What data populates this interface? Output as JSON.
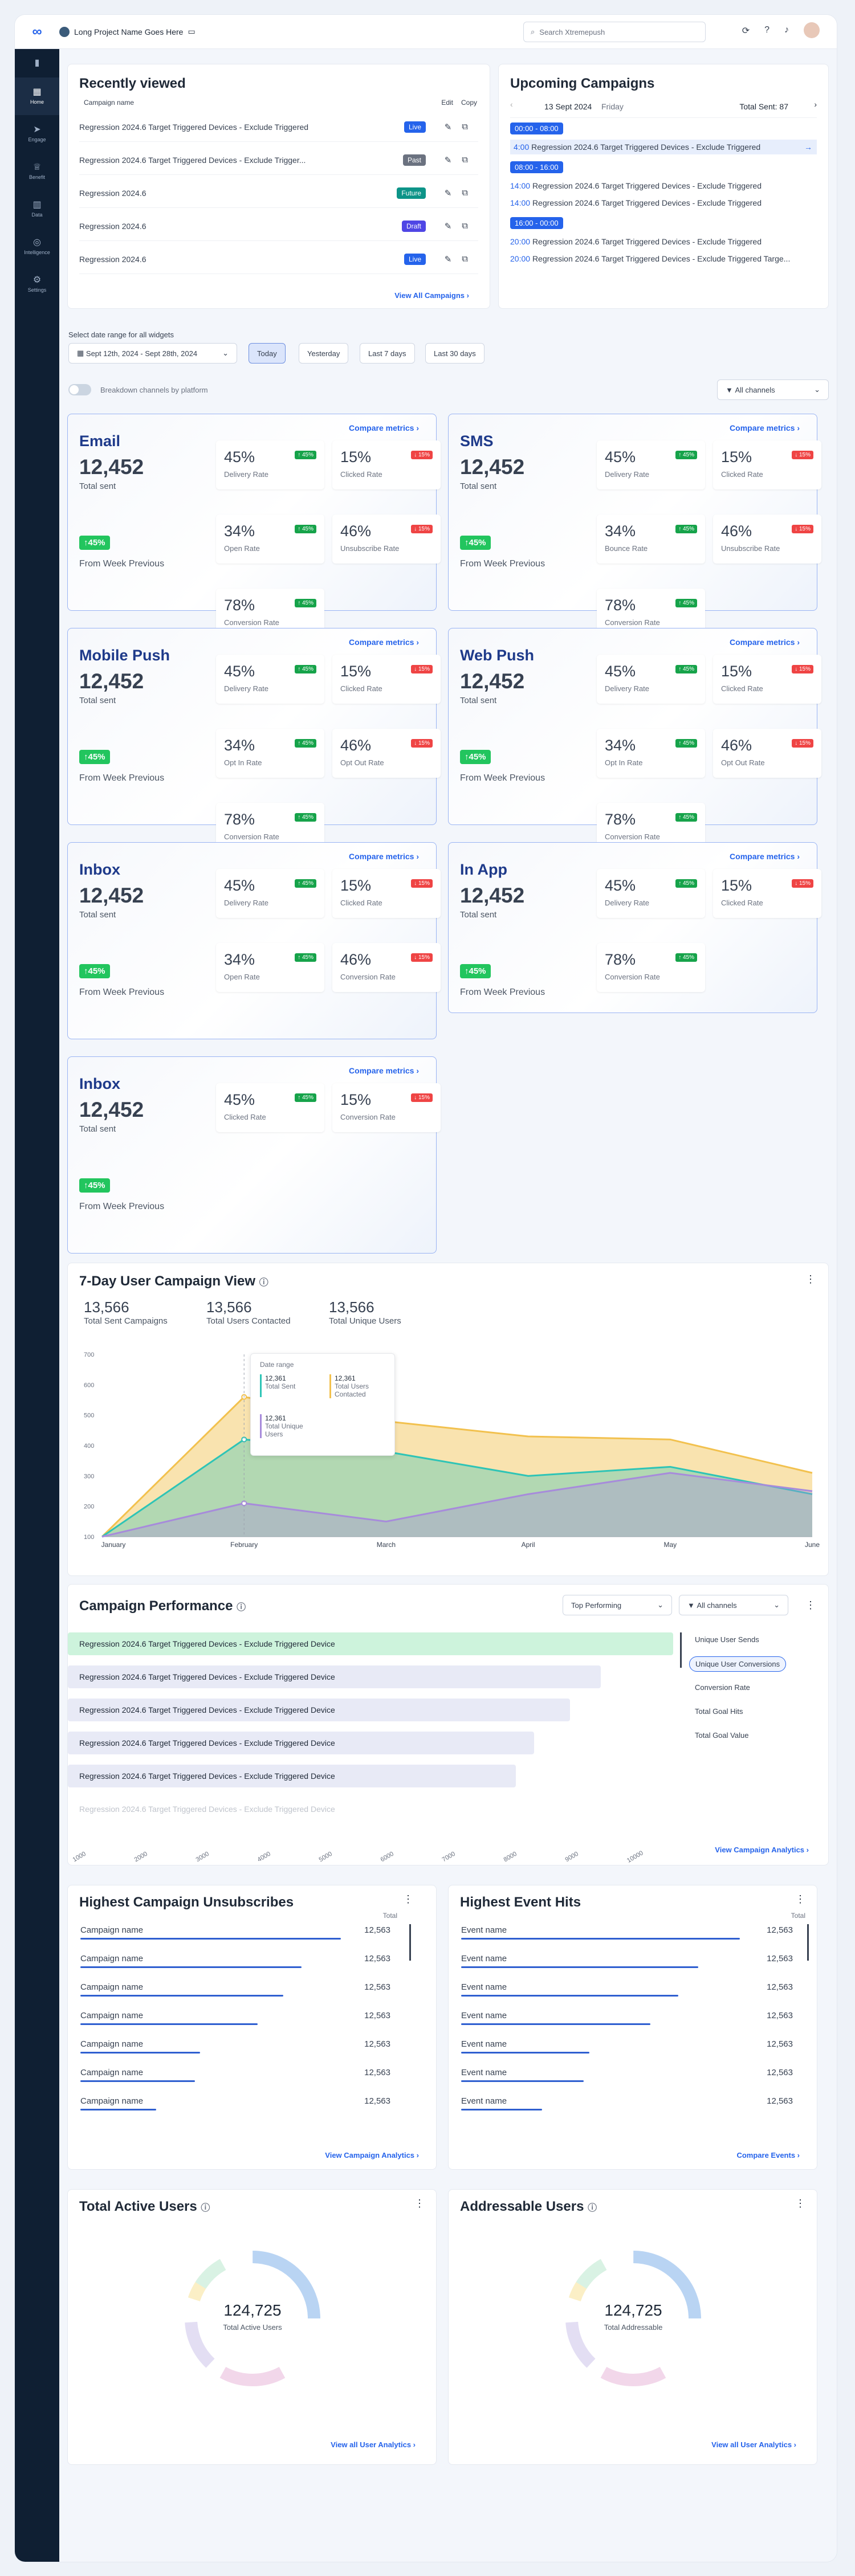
{
  "header": {
    "project": "Long Project Name Goes Here",
    "search_placeholder": "Search Xtremepush"
  },
  "sidebar": [
    {
      "label": "Home",
      "icon": "home-icon",
      "glyph": "▦"
    },
    {
      "label": "Engage",
      "icon": "send-icon",
      "glyph": "➤"
    },
    {
      "label": "Benefit",
      "icon": "trophy-icon",
      "glyph": "♕"
    },
    {
      "label": "Data",
      "icon": "chart-icon",
      "glyph": "▥"
    },
    {
      "label": "Intelligence",
      "icon": "brain-icon",
      "glyph": "◎"
    },
    {
      "label": "Settings",
      "icon": "gear-icon",
      "glyph": "⚙"
    }
  ],
  "recent": {
    "title": "Recently viewed",
    "col_name": "Campaign name",
    "col_edit": "Edit",
    "col_copy": "Copy",
    "view_all": "View All Campaigns",
    "rows": [
      {
        "name": "Regression 2024.6 Target Triggered Devices - Exclude Triggered",
        "status": "Live",
        "color": "#2563eb"
      },
      {
        "name": "Regression 2024.6 Target Triggered Devices - Exclude Trigger...",
        "status": "Past",
        "color": "#6b7280"
      },
      {
        "name": "Regression 2024.6",
        "status": "Future",
        "color": "#0d9488"
      },
      {
        "name": "Regression 2024.6",
        "status": "Draft",
        "color": "#4f46e5"
      },
      {
        "name": "Regression 2024.6",
        "status": "Live",
        "color": "#2563eb"
      }
    ]
  },
  "upcoming": {
    "title": "Upcoming Campaigns",
    "date": "13 Sept 2024",
    "day": "Friday",
    "total": "Total Sent: 87",
    "groups": [
      {
        "time": "00:00 - 08:00",
        "items": [
          {
            "t": "4:00",
            "n": "Regression 2024.6 Target Triggered Devices - Exclude Triggered"
          }
        ]
      },
      {
        "time": "08:00 - 16:00",
        "items": [
          {
            "t": "14:00",
            "n": "Regression 2024.6 Target Triggered Devices - Exclude Triggered"
          },
          {
            "t": "14:00",
            "n": "Regression 2024.6 Target Triggered Devices - Exclude Triggered"
          }
        ]
      },
      {
        "time": "16:00 - 00:00",
        "items": [
          {
            "t": "20:00",
            "n": "Regression 2024.6 Target Triggered Devices - Exclude Triggered"
          },
          {
            "t": "20:00",
            "n": "Regression 2024.6 Target Triggered Devices - Exclude Triggered Targe..."
          }
        ]
      }
    ]
  },
  "filters": {
    "label": "Select date range for all widgets",
    "range": "Sept 12th, 2024 - Sept 28th, 2024",
    "today": "Today",
    "yesterday": "Yesterday",
    "last7": "Last 7 days",
    "last30": "Last 30 days",
    "breakdown": "Breakdown channels by platform",
    "channels": "All channels"
  },
  "channels": [
    {
      "name": "Email",
      "value": "12,452",
      "sub": "Total sent",
      "change": "↑45%",
      "from": "From Week Previous",
      "compare": "Compare metrics",
      "tiles": [
        {
          "v": "45%",
          "l": "Delivery Rate",
          "d": "↑ 45%",
          "up": true
        },
        {
          "v": "15%",
          "l": "Clicked Rate",
          "d": "↓ 15%",
          "up": false
        },
        {
          "v": "34%",
          "l": "Open Rate",
          "d": "↑ 45%",
          "up": true
        },
        {
          "v": "46%",
          "l": "Unsubscribe Rate",
          "d": "↓ 15%",
          "up": false
        },
        {
          "v": "78%",
          "l": "Conversion Rate",
          "d": "↑ 45%",
          "up": true
        }
      ]
    },
    {
      "name": "SMS",
      "value": "12,452",
      "sub": "Total sent",
      "change": "↑45%",
      "from": "From Week Previous",
      "compare": "Compare metrics",
      "tiles": [
        {
          "v": "45%",
          "l": "Delivery Rate",
          "d": "↑ 45%",
          "up": true
        },
        {
          "v": "15%",
          "l": "Clicked Rate",
          "d": "↓ 15%",
          "up": false
        },
        {
          "v": "34%",
          "l": "Bounce Rate",
          "d": "↑ 45%",
          "up": true
        },
        {
          "v": "46%",
          "l": "Unsubscribe Rate",
          "d": "↓ 15%",
          "up": false
        },
        {
          "v": "78%",
          "l": "Conversion Rate",
          "d": "↑ 45%",
          "up": true
        }
      ]
    },
    {
      "name": "Mobile Push",
      "value": "12,452",
      "sub": "Total sent",
      "change": "↑45%",
      "from": "From Week Previous",
      "compare": "Compare metrics",
      "tiles": [
        {
          "v": "45%",
          "l": "Delivery Rate",
          "d": "↑ 45%",
          "up": true
        },
        {
          "v": "15%",
          "l": "Clicked Rate",
          "d": "↓ 15%",
          "up": false
        },
        {
          "v": "34%",
          "l": "Opt In Rate",
          "d": "↑ 45%",
          "up": true
        },
        {
          "v": "46%",
          "l": "Opt Out Rate",
          "d": "↓ 15%",
          "up": false
        },
        {
          "v": "78%",
          "l": "Conversion Rate",
          "d": "↑ 45%",
          "up": true
        }
      ]
    },
    {
      "name": "Web Push",
      "value": "12,452",
      "sub": "Total sent",
      "change": "↑45%",
      "from": "From Week Previous",
      "compare": "Compare metrics",
      "tiles": [
        {
          "v": "45%",
          "l": "Delivery Rate",
          "d": "↑ 45%",
          "up": true
        },
        {
          "v": "15%",
          "l": "Clicked Rate",
          "d": "↓ 15%",
          "up": false
        },
        {
          "v": "34%",
          "l": "Opt In Rate",
          "d": "↑ 45%",
          "up": true
        },
        {
          "v": "46%",
          "l": "Opt Out Rate",
          "d": "↓ 15%",
          "up": false
        },
        {
          "v": "78%",
          "l": "Conversion Rate",
          "d": "↑ 45%",
          "up": true
        }
      ]
    },
    {
      "name": "Inbox",
      "value": "12,452",
      "sub": "Total sent",
      "change": "↑45%",
      "from": "From Week Previous",
      "compare": "Compare metrics",
      "tiles": [
        {
          "v": "45%",
          "l": "Delivery Rate",
          "d": "↑ 45%",
          "up": true
        },
        {
          "v": "15%",
          "l": "Clicked Rate",
          "d": "↓ 15%",
          "up": false
        },
        {
          "v": "34%",
          "l": "Open Rate",
          "d": "↑ 45%",
          "up": true
        },
        {
          "v": "46%",
          "l": "Conversion Rate",
          "d": "↓ 15%",
          "up": false
        }
      ]
    },
    {
      "name": "In App",
      "value": "12,452",
      "sub": "Total sent",
      "change": "↑45%",
      "from": "From Week Previous",
      "compare": "Compare metrics",
      "tiles": [
        {
          "v": "45%",
          "l": "Delivery Rate",
          "d": "↑ 45%",
          "up": true
        },
        {
          "v": "15%",
          "l": "Clicked Rate",
          "d": "↓ 15%",
          "up": false
        },
        {
          "v": "78%",
          "l": "Conversion Rate",
          "d": "↑ 45%",
          "up": true
        }
      ]
    },
    {
      "name": "Inbox",
      "value": "12,452",
      "sub": "Total sent",
      "change": "↑45%",
      "from": "From Week Previous",
      "compare": "Compare metrics",
      "tiles": [
        {
          "v": "45%",
          "l": "Clicked Rate",
          "d": "↑ 45%",
          "up": true
        },
        {
          "v": "15%",
          "l": "Conversion Rate",
          "d": "↓ 15%",
          "up": false
        }
      ]
    }
  ],
  "sevenday": {
    "title": "7-Day User Campaign View",
    "stats": [
      {
        "v": "13,566",
        "l": "Total Sent Campaigns",
        "c": "#2ec4b6"
      },
      {
        "v": "13,566",
        "l": "Total Users Contacted",
        "c": "#f2c14e"
      },
      {
        "v": "13,566",
        "l": "Total Unique Users",
        "c": "#a78bdb"
      }
    ],
    "tooltip": {
      "title": "Date range",
      "a": "12,361",
      "al": "Total Sent",
      "b": "12,361",
      "bl": "Total Users Contacted",
      "c": "12,361",
      "cl": "Total Unique Users"
    }
  },
  "chart_data": {
    "type": "area",
    "x": [
      "January",
      "February",
      "March",
      "April",
      "May",
      "June"
    ],
    "ylim": [
      100,
      700
    ],
    "yticks": [
      "100",
      "200",
      "300",
      "400",
      "500",
      "600",
      "700"
    ],
    "series": [
      {
        "name": "Total Users Contacted",
        "color": "#f2c14e",
        "values": [
          100,
          560,
          480,
          430,
          420,
          310
        ]
      },
      {
        "name": "Total Sent",
        "color": "#2ec4b6",
        "values": [
          100,
          420,
          380,
          300,
          330,
          240
        ]
      },
      {
        "name": "Total Unique Users",
        "color": "#a78bdb",
        "values": [
          100,
          210,
          150,
          240,
          310,
          250
        ]
      }
    ]
  },
  "performance": {
    "title": "Campaign Performance",
    "sort": "Top Performing",
    "channels": "All channels",
    "view": "View Campaign Analytics",
    "bars": [
      {
        "n": "Regression 2024.6 Target Triggered Devices - Exclude Triggered Device",
        "v": 1.0
      },
      {
        "n": "Regression 2024.6 Target Triggered Devices - Exclude Triggered Device",
        "v": 0.88
      },
      {
        "n": "Regression 2024.6 Target Triggered Devices - Exclude Triggered Device",
        "v": 0.83
      },
      {
        "n": "Regression 2024.6 Target Triggered Devices - Exclude Triggered Device",
        "v": 0.77
      },
      {
        "n": "Regression 2024.6 Target Triggered Devices - Exclude Triggered Device",
        "v": 0.74
      },
      {
        "n": "Regression 2024.6 Target Triggered Devices - Exclude Triggered Device",
        "v": 0.0
      }
    ],
    "ticks": [
      "1000",
      "2000",
      "3000",
      "4000",
      "5000",
      "6000",
      "7000",
      "8000",
      "9000",
      "10000"
    ],
    "options": [
      "Unique User Sends",
      "Unique User Conversions",
      "Conversion Rate",
      "Total Goal Hits",
      "Total Goal Value"
    ]
  },
  "unsubs": {
    "title": "Highest Campaign Unsubscribes",
    "col": "Total",
    "view": "View Campaign Analytics",
    "rows": [
      {
        "n": "Campaign name",
        "v": "12,563",
        "w": 1.0
      },
      {
        "n": "Campaign name",
        "v": "12,563",
        "w": 0.85
      },
      {
        "n": "Campaign name",
        "v": "12,563",
        "w": 0.78
      },
      {
        "n": "Campaign name",
        "v": "12,563",
        "w": 0.68
      },
      {
        "n": "Campaign name",
        "v": "12,563",
        "w": 0.46
      },
      {
        "n": "Campaign name",
        "v": "12,563",
        "w": 0.44
      },
      {
        "n": "Campaign name",
        "v": "12,563",
        "w": 0.29
      }
    ]
  },
  "events": {
    "title": "Highest Event Hits",
    "col": "Total",
    "view": "Compare Events",
    "rows": [
      {
        "n": "Event name",
        "v": "12,563",
        "w": 1.0
      },
      {
        "n": "Event name",
        "v": "12,563",
        "w": 0.85
      },
      {
        "n": "Event name",
        "v": "12,563",
        "w": 0.78
      },
      {
        "n": "Event name",
        "v": "12,563",
        "w": 0.68
      },
      {
        "n": "Event name",
        "v": "12,563",
        "w": 0.46
      },
      {
        "n": "Event name",
        "v": "12,563",
        "w": 0.44
      },
      {
        "n": "Event name",
        "v": "12,563",
        "w": 0.29
      }
    ]
  },
  "active": {
    "title": "Total Active Users",
    "value": "124,725",
    "label": "Total Active Users",
    "view": "View all User Analytics"
  },
  "address": {
    "title": "Addressable Users",
    "value": "124,725",
    "label": "Total Addressable",
    "view": "View all User Analytics"
  }
}
